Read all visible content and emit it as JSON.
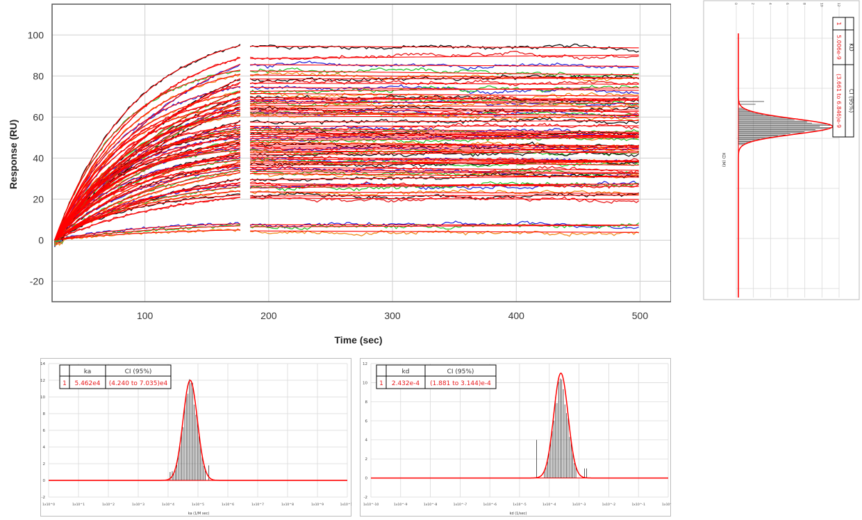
{
  "chart_data": [
    {
      "type": "line",
      "id": "sensorgram",
      "xlabel": "Time (sec)",
      "ylabel": "Response (RU)",
      "xlim": [
        25,
        525
      ],
      "ylim": [
        -30,
        115
      ],
      "xticks": [
        100,
        200,
        300,
        400,
        500
      ],
      "yticks": [
        -20,
        0,
        20,
        40,
        60,
        80,
        100
      ],
      "grid": true,
      "association_end": 178,
      "dissociation_start": 185,
      "dissociation_end": 500,
      "trace_colors": [
        "#111111",
        "#e8181a",
        "#2b2bd9",
        "#2fc42f",
        "#f08a1c"
      ],
      "fit_color": "#ff0000",
      "plateaus": [
        95,
        89,
        86,
        83,
        81,
        79,
        77,
        75,
        73,
        72,
        70,
        69,
        68,
        67,
        66,
        65,
        64,
        63,
        62,
        61,
        58,
        56,
        55,
        54,
        53,
        52,
        51,
        50,
        49,
        48,
        47,
        46,
        45,
        44,
        43,
        42,
        41,
        40,
        39,
        38,
        37,
        36,
        35,
        34,
        33,
        30,
        28,
        27,
        26,
        24,
        22,
        21,
        8,
        7,
        5
      ]
    },
    {
      "type": "bar",
      "id": "kd-histogram",
      "orientation": "rotated-90",
      "xlabel": "KD (M)",
      "scale": "log",
      "peak_count": 11,
      "fit_color": "#ff0000",
      "table": {
        "headers": [
          "",
          "KD",
          "CI (95%)"
        ],
        "rows": [
          [
            "1",
            "5.006e-9",
            "(3.661 to 6.846)e-9"
          ]
        ]
      }
    },
    {
      "type": "bar",
      "id": "ka-histogram",
      "xlabel": "ka (1/M sec)",
      "scale": "log",
      "ylim": [
        -2,
        14
      ],
      "yticks": [
        -2,
        0,
        2,
        4,
        6,
        8,
        10,
        12,
        14
      ],
      "xtick_labels": [
        "1x10^0",
        "1x10^1",
        "1x10^2",
        "1x10^3",
        "1x10^4",
        "1x10^5",
        "1x10^6",
        "1x10^7",
        "1x10^8",
        "1x10^9",
        "1x10^10"
      ],
      "peak": 12,
      "fit_color": "#ff0000",
      "table": {
        "headers": [
          "",
          "ka",
          "CI (95%)"
        ],
        "rows": [
          [
            "1",
            "5.462e4",
            "(4.240 to 7.035)e4"
          ]
        ]
      }
    },
    {
      "type": "bar",
      "id": "kd-rate-histogram",
      "xlabel": "kd (1/sec)",
      "scale": "log",
      "ylim": [
        -2,
        12
      ],
      "yticks": [
        -2,
        0,
        2,
        4,
        6,
        8,
        10,
        12
      ],
      "xtick_labels": [
        "1x10^-10",
        "1x10^-9",
        "1x10^-8",
        "1x10^-7",
        "1x10^-6",
        "1x10^-5",
        "1x10^-4",
        "1x10^-3",
        "1x10^-2",
        "1x10^-1",
        "1x10^0"
      ],
      "peak": 11,
      "fit_color": "#ff0000",
      "table": {
        "headers": [
          "",
          "kd",
          "CI (95%)"
        ],
        "rows": [
          [
            "1",
            "2.432e-4",
            "(1.881 to 3.144)e-4"
          ]
        ]
      }
    }
  ]
}
